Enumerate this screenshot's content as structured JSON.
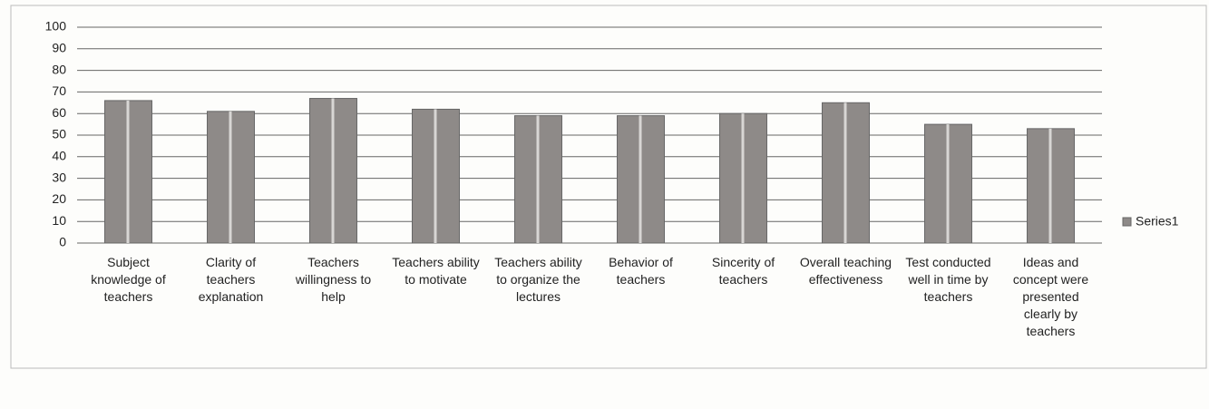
{
  "chart_data": {
    "type": "bar",
    "categories": [
      "Subject knowledge of teachers",
      "Clarity of teachers explanation",
      "Teachers willingness to help",
      "Teachers ability to motivate",
      "Teachers ability to organize the lectures",
      "Behavior of teachers",
      "Sincerity of teachers",
      "Overall teaching effectiveness",
      "Test conducted well in time by teachers",
      "Ideas and concept were presented clearly by teachers"
    ],
    "series": [
      {
        "name": "Series1",
        "color": "#8e8a88",
        "values": [
          66,
          61,
          67,
          62,
          59,
          59,
          60,
          65,
          55,
          53
        ]
      }
    ],
    "ylim": [
      0,
      100
    ],
    "yticks": [
      0,
      10,
      20,
      30,
      40,
      50,
      60,
      70,
      80,
      90,
      100
    ],
    "grid": true,
    "legend": "right"
  }
}
